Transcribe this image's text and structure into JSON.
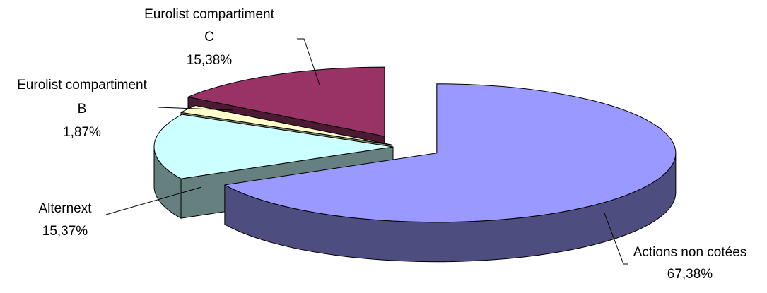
{
  "chart_data": {
    "type": "pie",
    "style": "3d-exploded",
    "title": "",
    "slices": [
      {
        "label": "Actions non cotées",
        "value_label": "67,38%",
        "value": 67.38,
        "color": "#9999ff"
      },
      {
        "label": "Eurolist compartiment C",
        "value_label": "15,38%",
        "value": 15.38,
        "color": "#ccffff"
      },
      {
        "label": "Eurolist compartiment B",
        "value_label": "1,87%",
        "value": 1.87,
        "color": "#ffffcc"
      },
      {
        "label": "Alternext",
        "value_label": "15,37%",
        "value": 15.37,
        "color": "#993366"
      }
    ],
    "legend": "none"
  }
}
